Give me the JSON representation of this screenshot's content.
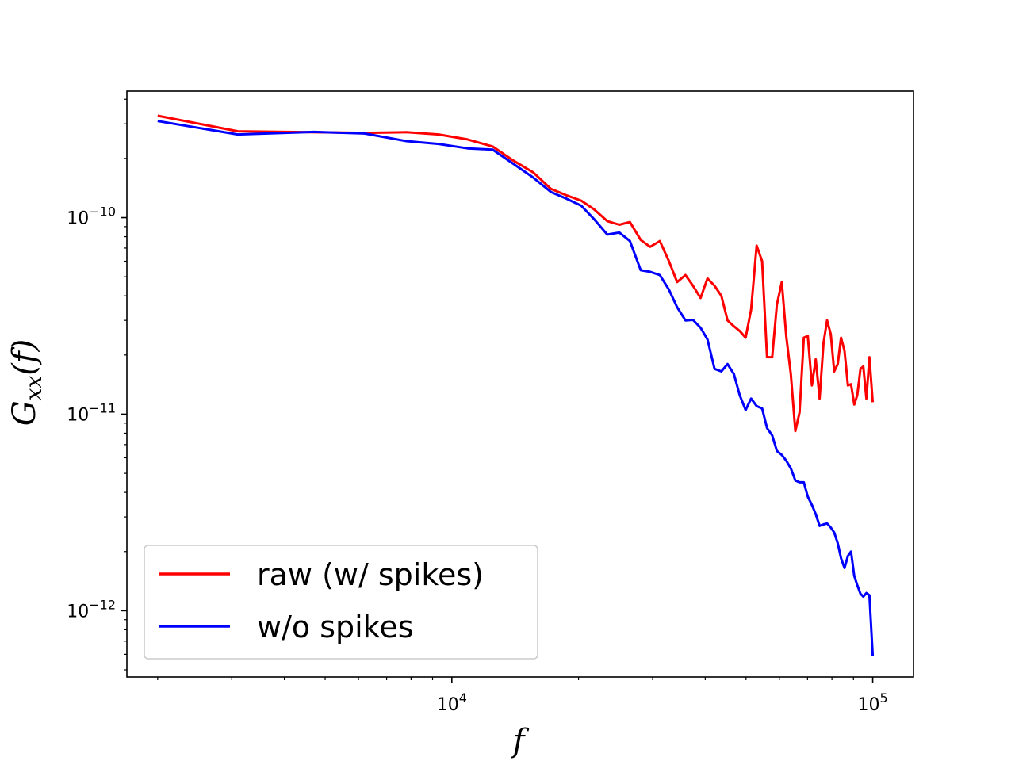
{
  "chart_data": {
    "type": "line",
    "x_scale": "log",
    "y_scale": "log",
    "xlim": [
      1690,
      125000
    ],
    "ylim": [
      4.6e-13,
      4.4e-10
    ],
    "xlabel": "f",
    "ylabel": {
      "base": "G",
      "subscript": "xx",
      "suffix": "(f)"
    },
    "x_ticks": [
      {
        "value": 10000,
        "base": "10",
        "exp": "4"
      },
      {
        "value": 100000,
        "base": "10",
        "exp": "5"
      }
    ],
    "y_ticks": [
      {
        "value": 1e-12,
        "base": "10",
        "exp": "−12"
      },
      {
        "value": 1e-11,
        "base": "10",
        "exp": "−11"
      },
      {
        "value": 1e-10,
        "base": "10",
        "exp": "−10"
      }
    ],
    "grid": false,
    "legend": {
      "position": "lower-left",
      "frame": true
    },
    "series": [
      {
        "name": "raw (w/ spikes)",
        "color": "#ff0000",
        "points": [
          [
            2000,
            3.3e-10
          ],
          [
            3100,
            2.75e-10
          ],
          [
            6200,
            2.7e-10
          ],
          [
            7800,
            2.72e-10
          ],
          [
            9300,
            2.65e-10
          ],
          [
            10900,
            2.5e-10
          ],
          [
            12500,
            2.3e-10
          ],
          [
            14000,
            1.95e-10
          ],
          [
            15600,
            1.7e-10
          ],
          [
            17200,
            1.4e-10
          ],
          [
            18700,
            1.3e-10
          ],
          [
            20300,
            1.22e-10
          ],
          [
            21800,
            1.1e-10
          ],
          [
            23400,
            9.6e-11
          ],
          [
            25000,
            9.2e-11
          ],
          [
            26500,
            9.5e-11
          ],
          [
            28100,
            7.7e-11
          ],
          [
            29600,
            7.1e-11
          ],
          [
            31200,
            7.6e-11
          ],
          [
            32800,
            6e-11
          ],
          [
            34300,
            4.7e-11
          ],
          [
            35900,
            5.1e-11
          ],
          [
            37400,
            4.5e-11
          ],
          [
            39000,
            3.9e-11
          ],
          [
            40500,
            4.9e-11
          ],
          [
            42100,
            4.5e-11
          ],
          [
            43700,
            4e-11
          ],
          [
            45200,
            3e-11
          ],
          [
            46800,
            2.8e-11
          ],
          [
            48300,
            2.65e-11
          ],
          [
            49900,
            2.45e-11
          ],
          [
            51400,
            3.4e-11
          ],
          [
            53000,
            7.2e-11
          ],
          [
            54600,
            6e-11
          ],
          [
            56100,
            1.95e-11
          ],
          [
            57700,
            1.95e-11
          ],
          [
            59200,
            3.6e-11
          ],
          [
            60800,
            4.7e-11
          ],
          [
            62300,
            2.5e-11
          ],
          [
            63900,
            1.6e-11
          ],
          [
            65500,
            8.2e-12
          ],
          [
            67000,
            1.02e-11
          ],
          [
            68600,
            2.45e-11
          ],
          [
            70100,
            2.5e-11
          ],
          [
            71700,
            1.4e-11
          ],
          [
            73200,
            1.9e-11
          ],
          [
            74800,
            1.2e-11
          ],
          [
            76400,
            2.3e-11
          ],
          [
            77900,
            3e-11
          ],
          [
            79500,
            2.55e-11
          ],
          [
            81000,
            1.65e-11
          ],
          [
            82600,
            1.8e-11
          ],
          [
            84100,
            2.45e-11
          ],
          [
            85700,
            2.1e-11
          ],
          [
            87300,
            1.4e-11
          ],
          [
            88800,
            1.42e-11
          ],
          [
            90400,
            1.12e-11
          ],
          [
            91900,
            1.25e-11
          ],
          [
            93500,
            1.7e-11
          ],
          [
            95000,
            1.75e-11
          ],
          [
            96600,
            1.2e-11
          ],
          [
            98200,
            1.95e-11
          ],
          [
            100000,
            1.15e-11
          ]
        ]
      },
      {
        "name": "w/o spikes",
        "color": "#0000ff",
        "points": [
          [
            2000,
            3.1e-10
          ],
          [
            3100,
            2.65e-10
          ],
          [
            4700,
            2.73e-10
          ],
          [
            6200,
            2.68e-10
          ],
          [
            7800,
            2.45e-10
          ],
          [
            9300,
            2.37e-10
          ],
          [
            10900,
            2.25e-10
          ],
          [
            12500,
            2.22e-10
          ],
          [
            14000,
            1.88e-10
          ],
          [
            15600,
            1.6e-10
          ],
          [
            17200,
            1.35e-10
          ],
          [
            18700,
            1.25e-10
          ],
          [
            20300,
            1.15e-10
          ],
          [
            21800,
            9.8e-11
          ],
          [
            23400,
            8.2e-11
          ],
          [
            25000,
            8.4e-11
          ],
          [
            26500,
            7.6e-11
          ],
          [
            28100,
            5.4e-11
          ],
          [
            29600,
            5.3e-11
          ],
          [
            31200,
            5.1e-11
          ],
          [
            32800,
            4.3e-11
          ],
          [
            34300,
            3.5e-11
          ],
          [
            35900,
            3e-11
          ],
          [
            37400,
            3.02e-11
          ],
          [
            39000,
            2.75e-11
          ],
          [
            40500,
            2.4e-11
          ],
          [
            42100,
            1.7e-11
          ],
          [
            43700,
            1.65e-11
          ],
          [
            45200,
            1.8e-11
          ],
          [
            46800,
            1.6e-11
          ],
          [
            48300,
            1.25e-11
          ],
          [
            49900,
            1.05e-11
          ],
          [
            51400,
            1.2e-11
          ],
          [
            53000,
            1.1e-11
          ],
          [
            54600,
            1.07e-11
          ],
          [
            56100,
            8.5e-12
          ],
          [
            57700,
            7.8e-12
          ],
          [
            59200,
            6.5e-12
          ],
          [
            60800,
            6.2e-12
          ],
          [
            62300,
            5.8e-12
          ],
          [
            63900,
            5.3e-12
          ],
          [
            65500,
            4.6e-12
          ],
          [
            67000,
            4.5e-12
          ],
          [
            68600,
            4.5e-12
          ],
          [
            70100,
            3.8e-12
          ],
          [
            71700,
            3.45e-12
          ],
          [
            73200,
            3.1e-12
          ],
          [
            74800,
            2.7e-12
          ],
          [
            76400,
            2.75e-12
          ],
          [
            77900,
            2.78e-12
          ],
          [
            79500,
            2.65e-12
          ],
          [
            81000,
            2.5e-12
          ],
          [
            82600,
            2.2e-12
          ],
          [
            84100,
            1.85e-12
          ],
          [
            85700,
            1.65e-12
          ],
          [
            87300,
            1.9e-12
          ],
          [
            88800,
            2e-12
          ],
          [
            90400,
            1.5e-12
          ],
          [
            91900,
            1.35e-12
          ],
          [
            93500,
            1.22e-12
          ],
          [
            95000,
            1.18e-12
          ],
          [
            96600,
            1.23e-12
          ],
          [
            98200,
            1.2e-12
          ],
          [
            100000,
            5.9e-13
          ]
        ]
      }
    ]
  }
}
